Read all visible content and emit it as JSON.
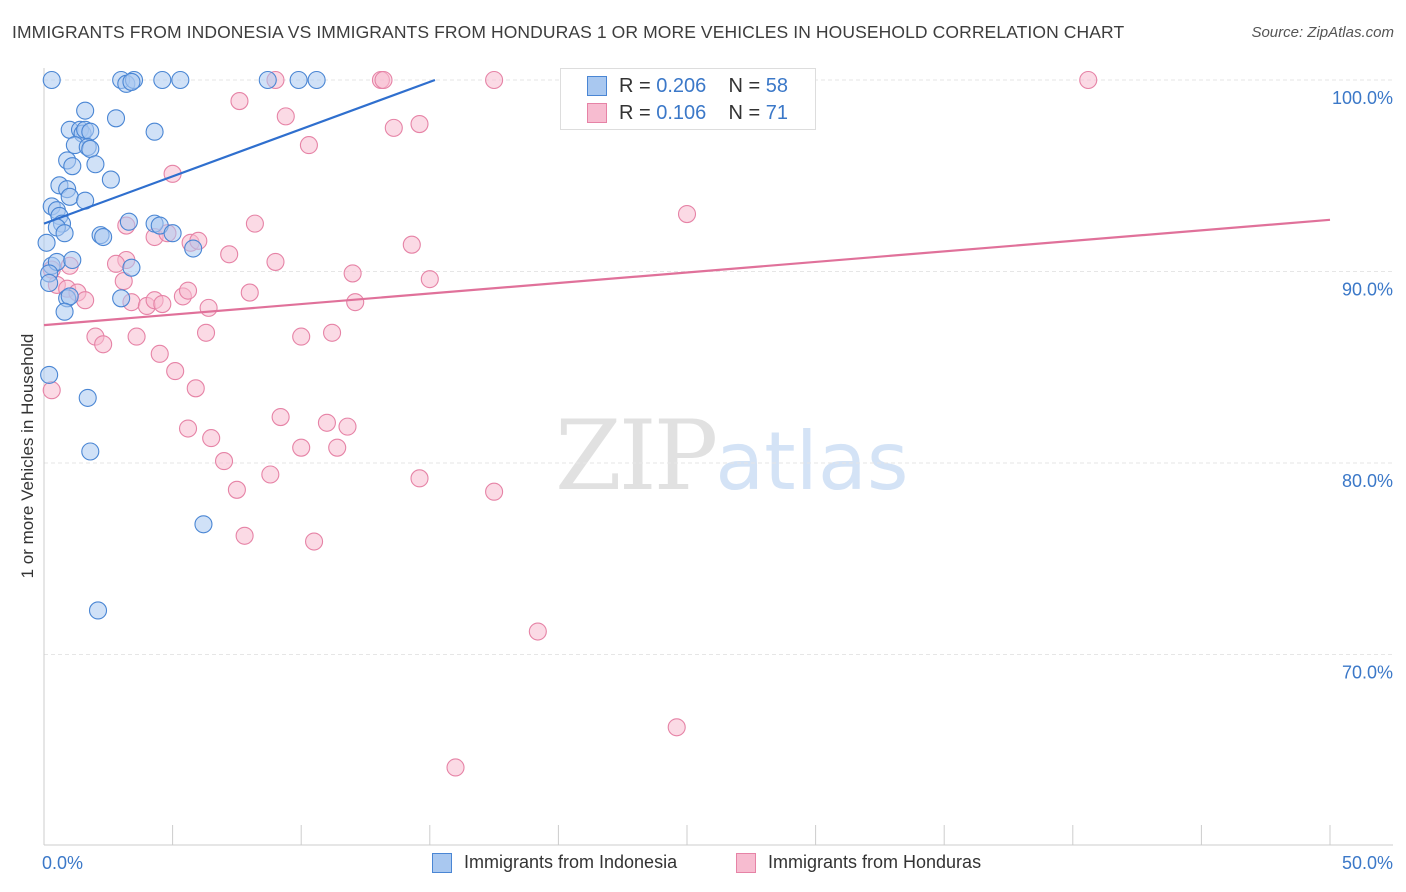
{
  "title": "IMMIGRANTS FROM INDONESIA VS IMMIGRANTS FROM HONDURAS 1 OR MORE VEHICLES IN HOUSEHOLD CORRELATION CHART",
  "source": "Source: ZipAtlas.com",
  "watermark": {
    "zip": "ZIP",
    "atlas": "atlas"
  },
  "legend": {
    "r_label": "R =",
    "n_label": "N =",
    "indonesia": {
      "r": "0.206",
      "n": "58"
    },
    "honduras": {
      "r": "0.106",
      "n": "71"
    }
  },
  "colors": {
    "indonesia_fill": "#a9c8f0",
    "indonesia_stroke": "#4a86d4",
    "indonesia_line": "#2f6fce",
    "honduras_fill": "#f7bcd0",
    "honduras_stroke": "#e683a6",
    "honduras_line": "#e0719a",
    "tick_label": "#3b78c8"
  },
  "chart_data": {
    "type": "scatter",
    "title": "IMMIGRANTS FROM INDONESIA VS IMMIGRANTS FROM HONDURAS 1 OR MORE VEHICLES IN HOUSEHOLD CORRELATION CHART",
    "xlabel": "",
    "ylabel": "1 or more Vehicles in Household",
    "xlim": [
      0,
      50
    ],
    "ylim": [
      62,
      100.5
    ],
    "x_tick_labels": [
      {
        "value": 0,
        "label": "0.0%"
      },
      {
        "value": 50,
        "label": "50.0%"
      }
    ],
    "y_tick_labels": [
      {
        "value": 100,
        "label": "100.0%"
      },
      {
        "value": 90,
        "label": "90.0%"
      },
      {
        "value": 80,
        "label": "80.0%"
      },
      {
        "value": 70,
        "label": "70.0%"
      }
    ],
    "grid": true,
    "legend_position": "top-center",
    "series": [
      {
        "name": "Immigrants from Indonesia",
        "r": 0.206,
        "n": 58,
        "trend": {
          "x": [
            0,
            15.2
          ],
          "y": [
            92.5,
            100
          ]
        },
        "points": [
          [
            3.0,
            100
          ],
          [
            3.2,
            99.8
          ],
          [
            3.5,
            100
          ],
          [
            3.4,
            99.9
          ],
          [
            4.6,
            100
          ],
          [
            5.3,
            100
          ],
          [
            8.7,
            100
          ],
          [
            9.9,
            100
          ],
          [
            10.6,
            100
          ],
          [
            1.6,
            98.4
          ],
          [
            2.8,
            98.0
          ],
          [
            1.0,
            97.4
          ],
          [
            1.4,
            97.4
          ],
          [
            1.5,
            97.2
          ],
          [
            1.6,
            97.4
          ],
          [
            1.8,
            97.3
          ],
          [
            4.3,
            97.3
          ],
          [
            1.2,
            96.6
          ],
          [
            1.7,
            96.5
          ],
          [
            1.8,
            96.4
          ],
          [
            0.9,
            95.8
          ],
          [
            1.1,
            95.5
          ],
          [
            2.0,
            95.6
          ],
          [
            2.6,
            94.8
          ],
          [
            0.6,
            94.5
          ],
          [
            0.9,
            94.3
          ],
          [
            1.0,
            93.9
          ],
          [
            1.6,
            93.7
          ],
          [
            0.3,
            93.4
          ],
          [
            0.5,
            93.2
          ],
          [
            0.6,
            92.9
          ],
          [
            0.7,
            92.5
          ],
          [
            0.5,
            92.3
          ],
          [
            0.8,
            92.0
          ],
          [
            2.2,
            91.9
          ],
          [
            2.3,
            91.8
          ],
          [
            3.3,
            92.6
          ],
          [
            4.3,
            92.5
          ],
          [
            4.5,
            92.4
          ],
          [
            5.0,
            92.0
          ],
          [
            5.8,
            91.2
          ],
          [
            0.1,
            91.5
          ],
          [
            0.3,
            90.3
          ],
          [
            0.5,
            90.5
          ],
          [
            1.1,
            90.6
          ],
          [
            0.2,
            89.9
          ],
          [
            0.2,
            89.4
          ],
          [
            3.4,
            90.2
          ],
          [
            0.9,
            88.6
          ],
          [
            1.0,
            88.7
          ],
          [
            3.0,
            88.6
          ],
          [
            0.8,
            87.9
          ],
          [
            0.2,
            84.6
          ],
          [
            1.7,
            83.4
          ],
          [
            1.8,
            80.6
          ],
          [
            6.2,
            76.8
          ],
          [
            2.1,
            72.3
          ],
          [
            0.3,
            100
          ]
        ]
      },
      {
        "name": "Immigrants from Honduras",
        "r": 0.106,
        "n": 71,
        "trend": {
          "x": [
            0,
            50
          ],
          "y": [
            87.2,
            92.7
          ]
        },
        "points": [
          [
            9.0,
            100
          ],
          [
            13.1,
            100
          ],
          [
            13.2,
            100
          ],
          [
            17.5,
            100
          ],
          [
            24.2,
            100
          ],
          [
            28.0,
            100
          ],
          [
            29.1,
            100
          ],
          [
            40.6,
            100
          ],
          [
            7.6,
            98.9
          ],
          [
            9.4,
            98.1
          ],
          [
            13.6,
            97.5
          ],
          [
            14.6,
            97.7
          ],
          [
            10.3,
            96.6
          ],
          [
            5.0,
            95.1
          ],
          [
            8.2,
            92.5
          ],
          [
            3.2,
            92.4
          ],
          [
            4.3,
            91.8
          ],
          [
            4.8,
            92.0
          ],
          [
            5.7,
            91.5
          ],
          [
            6.0,
            91.6
          ],
          [
            14.3,
            91.4
          ],
          [
            25.0,
            93.0
          ],
          [
            7.2,
            90.9
          ],
          [
            9.0,
            90.5
          ],
          [
            3.2,
            90.6
          ],
          [
            2.8,
            90.4
          ],
          [
            1.0,
            90.3
          ],
          [
            0.3,
            90.1
          ],
          [
            12.0,
            89.9
          ],
          [
            15.0,
            89.6
          ],
          [
            0.5,
            89.3
          ],
          [
            0.9,
            89.1
          ],
          [
            1.3,
            88.9
          ],
          [
            1.6,
            88.5
          ],
          [
            3.1,
            89.5
          ],
          [
            3.4,
            88.4
          ],
          [
            4.0,
            88.2
          ],
          [
            4.3,
            88.5
          ],
          [
            4.6,
            88.3
          ],
          [
            5.4,
            88.7
          ],
          [
            5.6,
            89.0
          ],
          [
            6.4,
            88.1
          ],
          [
            8.0,
            88.9
          ],
          [
            12.1,
            88.4
          ],
          [
            2.0,
            86.6
          ],
          [
            2.3,
            86.2
          ],
          [
            3.6,
            86.6
          ],
          [
            6.3,
            86.8
          ],
          [
            10.0,
            86.6
          ],
          [
            11.2,
            86.8
          ],
          [
            4.5,
            85.7
          ],
          [
            5.1,
            84.8
          ],
          [
            5.9,
            83.9
          ],
          [
            0.3,
            83.8
          ],
          [
            9.2,
            82.4
          ],
          [
            11.0,
            82.1
          ],
          [
            11.8,
            81.9
          ],
          [
            5.6,
            81.8
          ],
          [
            6.5,
            81.3
          ],
          [
            10.0,
            80.8
          ],
          [
            11.4,
            80.8
          ],
          [
            7.0,
            80.1
          ],
          [
            8.8,
            79.4
          ],
          [
            14.6,
            79.2
          ],
          [
            17.5,
            78.5
          ],
          [
            7.5,
            78.6
          ],
          [
            7.8,
            76.2
          ],
          [
            10.5,
            75.9
          ],
          [
            19.2,
            71.2
          ],
          [
            24.6,
            66.2
          ],
          [
            16.0,
            64.1
          ]
        ]
      }
    ]
  },
  "bottom_legend": {
    "indonesia": "Immigrants from Indonesia",
    "honduras": "Immigrants from Honduras"
  }
}
